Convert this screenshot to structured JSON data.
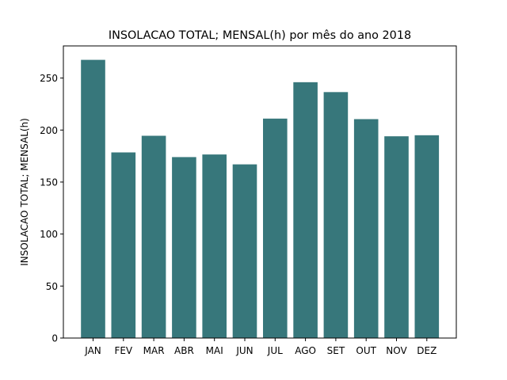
{
  "chart_data": {
    "type": "bar",
    "title": "INSOLACAO TOTAL; MENSAL(h) por mês do ano 2018",
    "xlabel": "",
    "ylabel": "INSOLACAO TOTAL; MENSAL(h)",
    "categories": [
      "JAN",
      "FEV",
      "MAR",
      "ABR",
      "MAI",
      "JUN",
      "JUL",
      "AGO",
      "SET",
      "OUT",
      "NOV",
      "DEZ"
    ],
    "values": [
      267.5,
      178.5,
      194.5,
      174,
      176.5,
      167,
      211,
      246,
      236.5,
      210.5,
      194,
      195
    ],
    "ylim": [
      0,
      280.9
    ],
    "yticks": [
      0,
      50,
      100,
      150,
      200,
      250
    ],
    "bar_color": "#37777b",
    "grid": false,
    "legend": "none"
  }
}
